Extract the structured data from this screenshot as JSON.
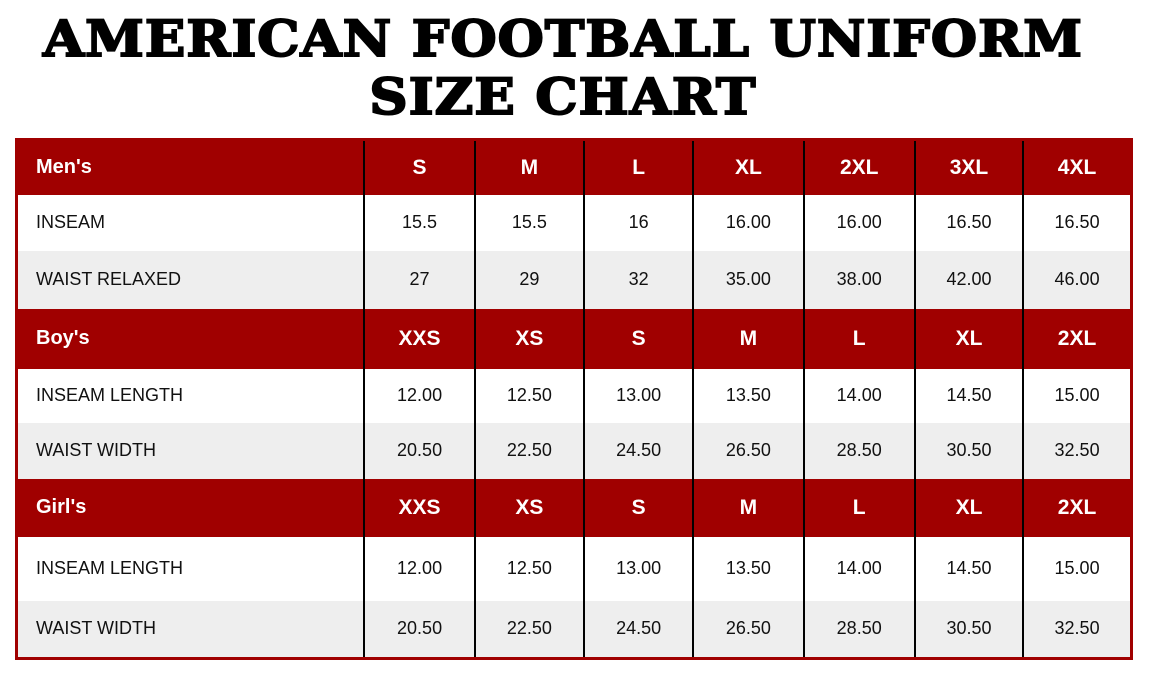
{
  "title": {
    "line1": "AMERICAN FOOTBALL UNIFORM",
    "line2": "SIZE CHART"
  },
  "colors": {
    "header_bg": "#a00000",
    "stripe_bg": "#eeeeee"
  },
  "sections": [
    {
      "label": "Men's",
      "sizes": [
        "S",
        "M",
        "L",
        "XL",
        "2XL",
        "3XL",
        "4XL"
      ],
      "rows": [
        {
          "label": "INSEAM",
          "values": [
            "15.5",
            "15.5",
            "16",
            "16.00",
            "16.00",
            "16.50",
            "16.50"
          ]
        },
        {
          "label": "WAIST RELAXED",
          "values": [
            "27",
            "29",
            "32",
            "35.00",
            "38.00",
            "42.00",
            "46.00"
          ]
        }
      ]
    },
    {
      "label": "Boy's",
      "sizes": [
        "XXS",
        "XS",
        "S",
        "M",
        "L",
        "XL",
        "2XL"
      ],
      "rows": [
        {
          "label": "INSEAM LENGTH",
          "values": [
            "12.00",
            "12.50",
            "13.00",
            "13.50",
            "14.00",
            "14.50",
            "15.00"
          ]
        },
        {
          "label": "WAIST WIDTH",
          "values": [
            "20.50",
            "22.50",
            "24.50",
            "26.50",
            "28.50",
            "30.50",
            "32.50"
          ]
        }
      ]
    },
    {
      "label": "Girl's",
      "sizes": [
        "XXS",
        "XS",
        "S",
        "M",
        "L",
        "XL",
        "2XL"
      ],
      "rows": [
        {
          "label": "INSEAM LENGTH",
          "values": [
            "12.00",
            "12.50",
            "13.00",
            "13.50",
            "14.00",
            "14.50",
            "15.00"
          ]
        },
        {
          "label": "WAIST WIDTH",
          "values": [
            "20.50",
            "22.50",
            "24.50",
            "26.50",
            "28.50",
            "30.50",
            "32.50"
          ]
        }
      ]
    }
  ]
}
